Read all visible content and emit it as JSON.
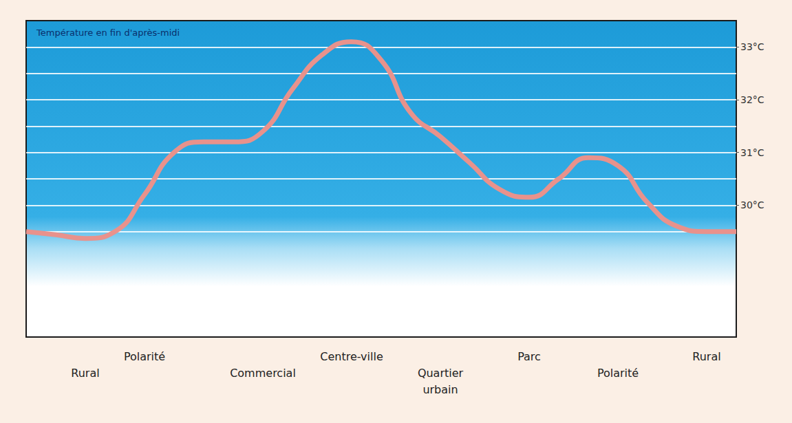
{
  "chart_data": {
    "type": "line",
    "title": "Température en fin d'après-midi",
    "categories": [
      null,
      null,
      "Rural",
      null,
      "Polarité",
      null,
      null,
      null,
      "Commercial",
      null,
      null,
      "Centre-ville",
      null,
      null,
      "Quartier urbain",
      null,
      null,
      "Parc",
      null,
      null,
      "Polarité",
      null,
      null,
      "Rural",
      null
    ],
    "values": [
      29.5,
      29.44,
      29.37,
      29.5,
      30.2,
      31.0,
      31.2,
      31.2,
      31.4,
      32.2,
      32.85,
      33.1,
      32.75,
      31.75,
      31.3,
      30.8,
      30.3,
      30.15,
      30.5,
      30.9,
      30.75,
      30.05,
      29.6,
      29.5,
      29.5
    ],
    "color": "#e8928c",
    "ylim": [
      27.5,
      33.5
    ],
    "yticks": [
      {
        "value": 30,
        "label": "30°C"
      },
      {
        "value": 31,
        "label": "31°C"
      },
      {
        "value": 32,
        "label": "32°C"
      },
      {
        "value": 33,
        "label": "33°C"
      }
    ],
    "grid": true,
    "marker": "none",
    "line_style": "solid"
  }
}
